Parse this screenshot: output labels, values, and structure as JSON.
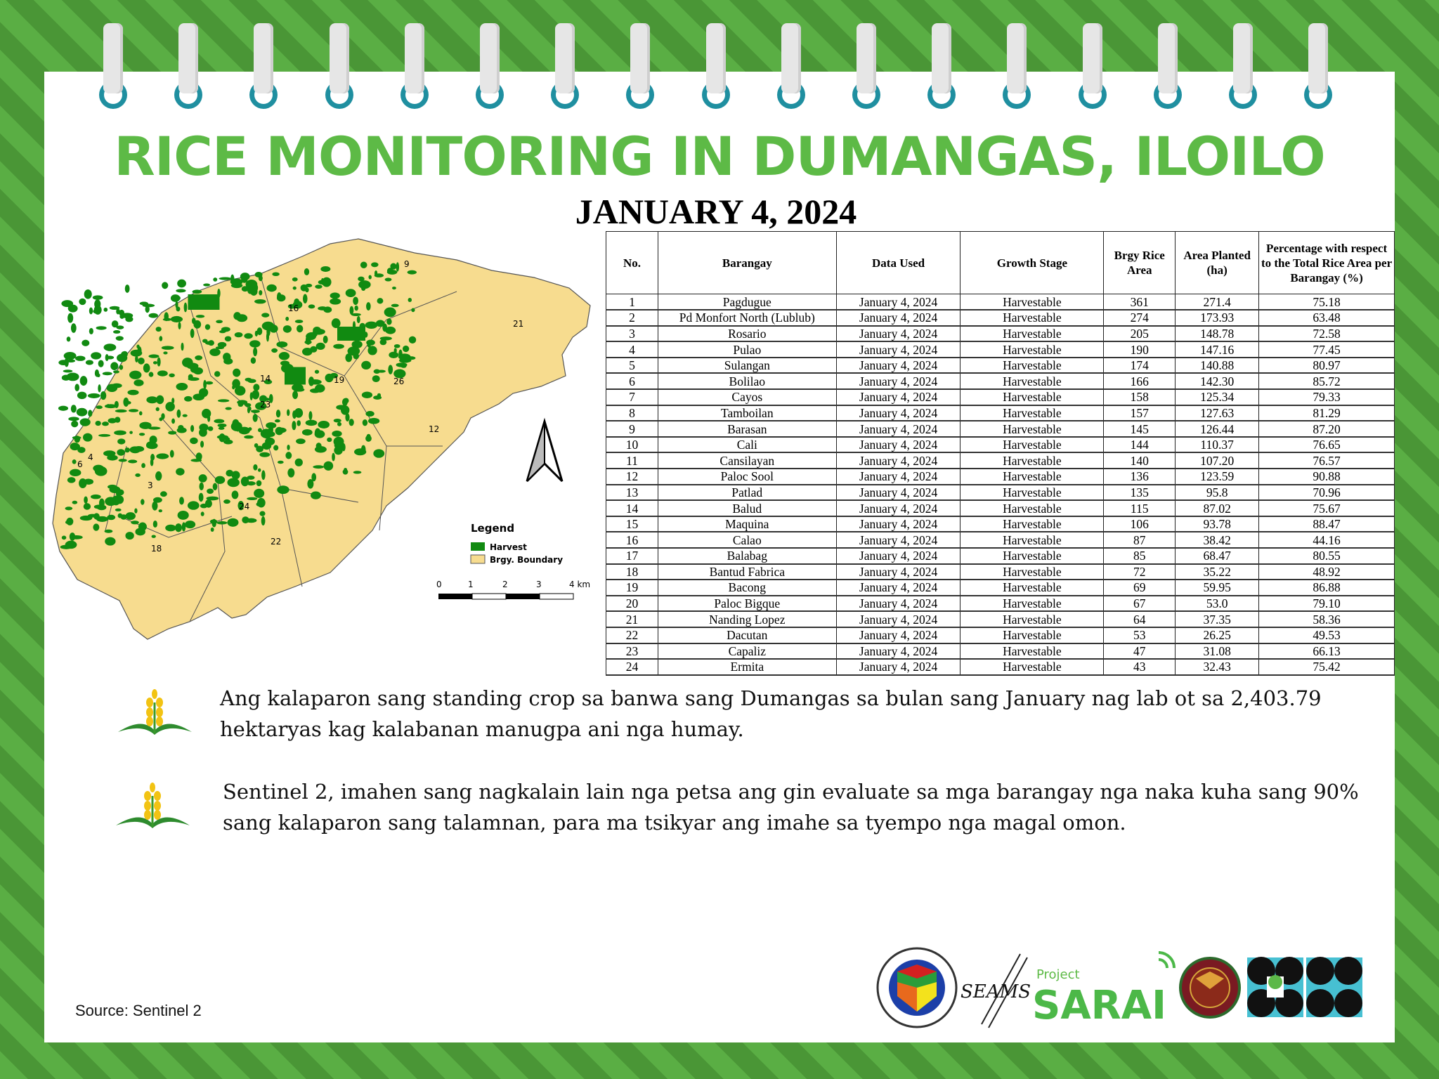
{
  "header": {
    "title": "RICE MONITORING IN DUMANGAS, ILOILO",
    "date": "JANUARY 4, 2024"
  },
  "map": {
    "legend_title": "Legend",
    "legend": [
      {
        "label": "Harvest",
        "color": "#118a11"
      },
      {
        "label": "Brgy. Boundary",
        "color": "#f7dc8f"
      }
    ],
    "scale_labels": [
      "0",
      "1",
      "2",
      "3",
      "4 km"
    ],
    "barangay_labels": [
      "9",
      "16",
      "21",
      "14",
      "19",
      "26",
      "23",
      "12",
      "3",
      "24",
      "18",
      "22",
      "4",
      "6"
    ],
    "north_arrow": "north-arrow-icon"
  },
  "table": {
    "headers": [
      "No.",
      "Barangay",
      "Data Used",
      "Growth Stage",
      "Brgy Rice Area",
      "Area Planted (ha)",
      "Percentage with respect to the Total Rice Area per Barangay (%)"
    ],
    "rows": [
      [
        "1",
        "Pagdugue",
        "January 4, 2024",
        "Harvestable",
        "361",
        "271.4",
        "75.18"
      ],
      [
        "2",
        "Pd Monfort North (Lublub)",
        "January 4, 2024",
        "Harvestable",
        "274",
        "173.93",
        "63.48"
      ],
      [
        "3",
        "Rosario",
        "January 4, 2024",
        "Harvestable",
        "205",
        "148.78",
        "72.58"
      ],
      [
        "4",
        "Pulao",
        "January 4, 2024",
        "Harvestable",
        "190",
        "147.16",
        "77.45"
      ],
      [
        "5",
        "Sulangan",
        "January 4, 2024",
        "Harvestable",
        "174",
        "140.88",
        "80.97"
      ],
      [
        "6",
        "Bolilao",
        "January 4, 2024",
        "Harvestable",
        "166",
        "142.30",
        "85.72"
      ],
      [
        "7",
        "Cayos",
        "January 4, 2024",
        "Harvestable",
        "158",
        "125.34",
        "79.33"
      ],
      [
        "8",
        "Tamboilan",
        "January 4, 2024",
        "Harvestable",
        "157",
        "127.63",
        "81.29"
      ],
      [
        "9",
        "Barasan",
        "January 4, 2024",
        "Harvestable",
        "145",
        "126.44",
        "87.20"
      ],
      [
        "10",
        "Cali",
        "January 4, 2024",
        "Harvestable",
        "144",
        "110.37",
        "76.65"
      ],
      [
        "11",
        "Cansilayan",
        "January 4, 2024",
        "Harvestable",
        "140",
        "107.20",
        "76.57"
      ],
      [
        "12",
        "Paloc Sool",
        "January 4, 2024",
        "Harvestable",
        "136",
        "123.59",
        "90.88"
      ],
      [
        "13",
        "Patlad",
        "January 4, 2024",
        "Harvestable",
        "135",
        "95.8",
        "70.96"
      ],
      [
        "14",
        "Balud",
        "January 4, 2024",
        "Harvestable",
        "115",
        "87.02",
        "75.67"
      ],
      [
        "15",
        "Maquina",
        "January 4, 2024",
        "Harvestable",
        "106",
        "93.78",
        "88.47"
      ],
      [
        "16",
        "Calao",
        "January 4, 2024",
        "Harvestable",
        "87",
        "38.42",
        "44.16"
      ],
      [
        "17",
        "Balabag",
        "January 4, 2024",
        "Harvestable",
        "85",
        "68.47",
        "80.55"
      ],
      [
        "18",
        "Bantud Fabrica",
        "January 4, 2024",
        "Harvestable",
        "72",
        "35.22",
        "48.92"
      ],
      [
        "19",
        "Bacong",
        "January 4, 2024",
        "Harvestable",
        "69",
        "59.95",
        "86.88"
      ],
      [
        "20",
        "Paloc Bigque",
        "January 4, 2024",
        "Harvestable",
        "67",
        "53.0",
        "79.10"
      ],
      [
        "21",
        "Nanding Lopez",
        "January 4, 2024",
        "Harvestable",
        "64",
        "37.35",
        "58.36"
      ],
      [
        "22",
        "Dacutan",
        "January 4, 2024",
        "Harvestable",
        "53",
        "26.25",
        "49.53"
      ],
      [
        "23",
        "Capaliz",
        "January 4, 2024",
        "Harvestable",
        "47",
        "31.08",
        "66.13"
      ],
      [
        "24",
        "Ermita",
        "January 4, 2024",
        "Harvestable",
        "43",
        "32.43",
        "75.42"
      ]
    ]
  },
  "bullets": [
    {
      "icon": "rice-plant-icon",
      "text": "Ang kalaparon sang standing crop sa banwa sang Dumangas sa bulan sang January nag lab ot sa 2,403.79 hektaryas kag kalabanan manugpa ani nga humay."
    },
    {
      "icon": "rice-plant-icon",
      "text": "Sentinel 2, imahen sang nagkalain lain nga petsa ang gin evaluate sa mga barangay nga naka kuha sang 90% sang kalaparon sang talamnan, para ma tsikyar ang imahe sa tyempo nga magal omon."
    }
  ],
  "footer": {
    "source": "Source: Sentinel 2",
    "logos": [
      {
        "name": "municipality-of-dumangas-seal",
        "text": "MUNICIPALITY OF DUMANGAS · PROVINCE OF ILOILO · 1572"
      },
      {
        "name": "seams-logo",
        "text": "SEAMS"
      },
      {
        "name": "project-sarai-logo",
        "text": "Project SARAI"
      },
      {
        "name": "up-seal",
        "text": "UNIVERSITY OF THE PHILIPPINES 1908"
      },
      {
        "name": "dost-logo",
        "text": ""
      }
    ]
  },
  "colors": {
    "title": "#5dba46",
    "border": "#4f9e3a",
    "harvest": "#118a11",
    "boundary": "#f7dc8f",
    "ring": "#1f8fa0"
  }
}
